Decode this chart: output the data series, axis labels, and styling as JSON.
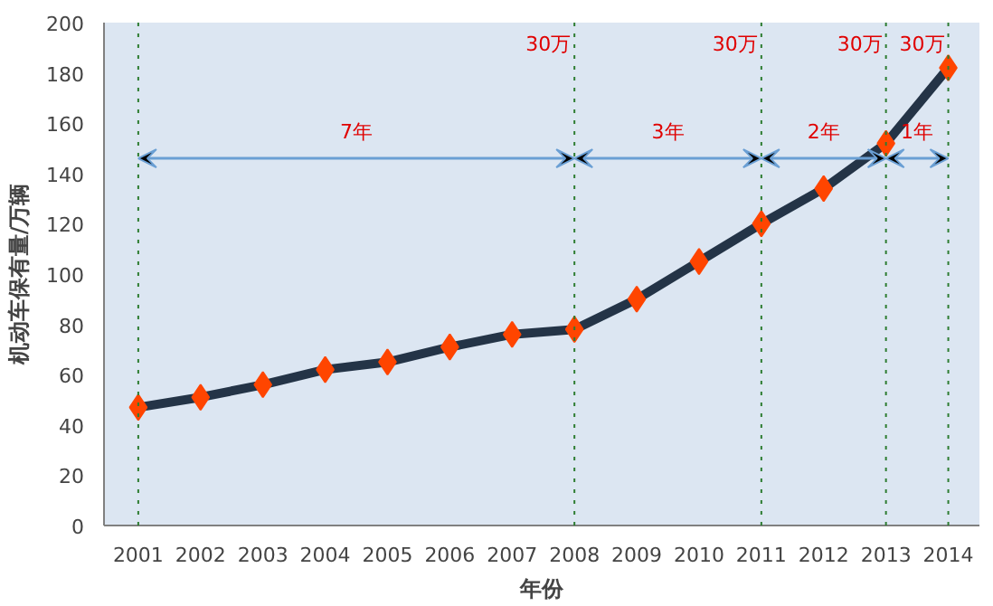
{
  "chart_data": {
    "type": "line",
    "xlabel": "年份",
    "ylabel": "机动车保有量/万辆",
    "categories": [
      "2001",
      "2002",
      "2003",
      "2004",
      "2005",
      "2006",
      "2007",
      "2008",
      "2009",
      "2010",
      "2011",
      "2012",
      "2013",
      "2014"
    ],
    "series": [
      {
        "color": "#243447",
        "values": [
          47,
          51,
          56,
          62,
          65,
          71,
          76,
          78,
          90,
          105,
          120,
          134,
          152,
          182
        ]
      }
    ],
    "marker": "diamond",
    "line_style": "solid",
    "ylim": [
      0,
      200
    ],
    "yticks": [
      0,
      20,
      40,
      60,
      80,
      100,
      120,
      140,
      160,
      180,
      200
    ],
    "grid": false,
    "ref_lines": [
      {
        "axis": "x",
        "value": "2001",
        "label": null,
        "color": "#2e7d32",
        "line_style": "dotted"
      },
      {
        "axis": "x",
        "value": "2008",
        "label": "30万",
        "color": "#2e7d32",
        "line_style": "dotted"
      },
      {
        "axis": "x",
        "value": "2011",
        "label": "30万",
        "color": "#2e7d32",
        "line_style": "dotted"
      },
      {
        "axis": "x",
        "value": "2013",
        "label": "30万",
        "color": "#2e7d32",
        "line_style": "dotted"
      },
      {
        "axis": "x",
        "value": "2014",
        "label": "30万",
        "color": "#2e7d32",
        "line_style": "dotted"
      }
    ],
    "annotations": [
      "7年",
      "3年",
      "2年",
      "1年"
    ]
  }
}
